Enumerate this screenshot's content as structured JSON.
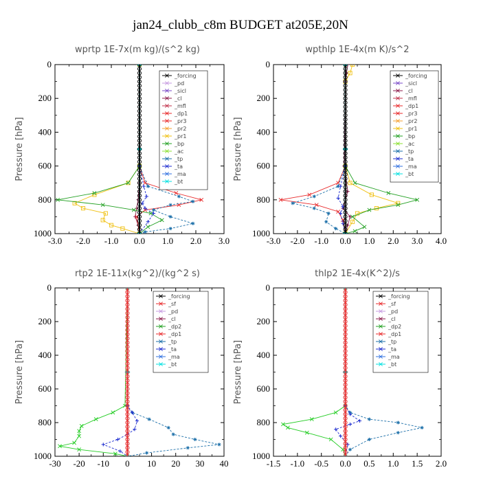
{
  "title": "jan24_clubb_c8m  BUDGET at205E,20N",
  "chart_data": [
    {
      "type": "line",
      "title": "wprtp   1E-7x(m kg)/(s^2 kg)",
      "ylabel": "Pressure [hPa]",
      "xlim": [
        -3.0,
        3.0
      ],
      "ylim": [
        1000,
        0
      ],
      "xticks": [
        "-3.0",
        "-2.0",
        "-1.0",
        "0.0",
        "1.0",
        "2.0",
        "3.0"
      ],
      "yticks": [
        "0",
        "200",
        "400",
        "600",
        "800",
        "1000"
      ],
      "legend": [
        "_forcing",
        "_pd",
        "_sicl",
        "_cl",
        "_mfl",
        "_dp1",
        "_pr3",
        "_pr2",
        "_pr1",
        "_bp",
        "_ac",
        "_tp",
        "_ta",
        "_ma",
        "_bt"
      ],
      "series": [
        {
          "name": "_forcing",
          "color": "#000000",
          "marker": "o",
          "x": [
            0,
            0,
            0,
            0,
            0,
            0,
            0,
            0,
            0,
            0,
            0
          ],
          "y": [
            0,
            100,
            200,
            300,
            400,
            500,
            600,
            700,
            800,
            900,
            1000
          ]
        },
        {
          "name": "_mfl",
          "color": "#8b1a4a",
          "marker": "+",
          "x": [
            0,
            0,
            0,
            -0.05,
            -0.1,
            -0.15,
            -0.05,
            0
          ],
          "y": [
            0,
            600,
            700,
            800,
            850,
            900,
            950,
            1000
          ]
        },
        {
          "name": "_dp1",
          "color": "#e8292a",
          "marker": "x",
          "x": [
            0,
            0,
            0.2,
            1.3,
            2.2,
            1.4,
            0.2,
            -0.1,
            0
          ],
          "y": [
            0,
            600,
            700,
            760,
            800,
            830,
            860,
            900,
            1000
          ]
        },
        {
          "name": "_pr1",
          "color": "#f0c010",
          "marker": "s",
          "x": [
            0,
            0,
            -0.4,
            -1.6,
            -2.3,
            -2.0,
            -1.2,
            -1.3,
            -1.0,
            -0.6,
            0
          ],
          "y": [
            0,
            600,
            700,
            770,
            820,
            850,
            880,
            920,
            950,
            970,
            1000
          ]
        },
        {
          "name": "_bp",
          "color": "#22a022",
          "marker": "x",
          "x": [
            0,
            0,
            -0.4,
            -1.6,
            -2.9,
            -1.3,
            -0.2,
            0.4,
            0.8,
            0.3,
            0
          ],
          "y": [
            0,
            600,
            700,
            760,
            800,
            830,
            860,
            880,
            920,
            960,
            1000
          ]
        },
        {
          "name": "_tp",
          "color": "#1a6ea8",
          "marker": "*",
          "x": [
            0,
            0,
            0.3,
            1.4,
            1.9,
            1.1,
            0.5,
            1.1,
            1.9,
            1.1,
            0.2,
            0
          ],
          "y": [
            0,
            600,
            720,
            780,
            810,
            830,
            860,
            900,
            940,
            970,
            990,
            1000
          ]
        },
        {
          "name": "_ta",
          "color": "#1f2ed0",
          "marker": "+",
          "x": [
            0,
            0,
            0.15,
            0.25,
            0.1,
            0.2,
            0.5,
            0.3,
            0
          ],
          "y": [
            0,
            600,
            720,
            780,
            820,
            850,
            880,
            930,
            1000
          ]
        },
        {
          "name": "_bt",
          "color": "#00e0e0",
          "marker": "d",
          "x": [
            0,
            0,
            0
          ],
          "y": [
            0,
            500,
            1000
          ]
        }
      ]
    },
    {
      "type": "line",
      "title": "wpthlp   1E-4x(m K)/s^2",
      "ylabel": "Pressure [hPa]",
      "xlim": [
        -3.0,
        4.0
      ],
      "ylim": [
        1000,
        0
      ],
      "xticks": [
        "-3.0",
        "-2.0",
        "-1.0",
        "0.0",
        "1.0",
        "2.0",
        "3.0",
        "4.0"
      ],
      "yticks": [
        "0",
        "200",
        "400",
        "600",
        "800",
        "1000"
      ],
      "legend": [
        "_forcing",
        "_sicl",
        "_cl",
        "_mfl",
        "_dp1",
        "_pr3",
        "_pr2",
        "_pr1",
        "_bp",
        "_ac",
        "_tp",
        "_ta",
        "_ma",
        "_bt"
      ],
      "series": [
        {
          "name": "_forcing",
          "color": "#000000",
          "marker": "o",
          "x": [
            0,
            0,
            0,
            0,
            0,
            0,
            0,
            0,
            0,
            0,
            0
          ],
          "y": [
            0,
            100,
            200,
            300,
            400,
            500,
            600,
            700,
            800,
            900,
            1000
          ]
        },
        {
          "name": "_mfl",
          "color": "#8b1a4a",
          "marker": "+",
          "x": [
            0.1,
            0.05,
            0,
            -0.05,
            0.1,
            -0.1,
            0.2,
            0.1,
            0
          ],
          "y": [
            0,
            50,
            100,
            600,
            750,
            850,
            900,
            950,
            1000
          ]
        },
        {
          "name": "_dp1",
          "color": "#e8292a",
          "marker": "x",
          "x": [
            0,
            0,
            -0.3,
            -1.5,
            -2.7,
            -1.2,
            -0.3,
            -0.1,
            0
          ],
          "y": [
            0,
            600,
            700,
            770,
            800,
            830,
            870,
            920,
            1000
          ]
        },
        {
          "name": "_pr1",
          "color": "#f0c010",
          "marker": "s",
          "x": [
            0.3,
            0.2,
            0,
            0,
            0.2,
            1.1,
            2.2,
            1.3,
            0.5,
            0.3,
            0
          ],
          "y": [
            0,
            50,
            100,
            600,
            700,
            770,
            820,
            850,
            880,
            930,
            1000
          ]
        },
        {
          "name": "_bp",
          "color": "#22a022",
          "marker": "x",
          "x": [
            0,
            0,
            0.4,
            1.8,
            3.0,
            2.2,
            1.0,
            0.3,
            0.8,
            0.4,
            0
          ],
          "y": [
            0,
            600,
            700,
            760,
            800,
            830,
            860,
            900,
            960,
            985,
            1000
          ]
        },
        {
          "name": "_tp",
          "color": "#1a6ea8",
          "marker": "*",
          "x": [
            0,
            0,
            -0.3,
            -1.3,
            -2.2,
            -1.3,
            -0.7,
            -0.8,
            -0.4,
            0
          ],
          "y": [
            0,
            600,
            720,
            780,
            820,
            850,
            880,
            930,
            970,
            1000
          ]
        },
        {
          "name": "_ta",
          "color": "#1f2ed0",
          "marker": "+",
          "x": [
            0,
            0,
            -0.2,
            -0.3,
            -0.1,
            -0.2,
            -0.1,
            0
          ],
          "y": [
            0,
            600,
            720,
            790,
            840,
            880,
            940,
            1000
          ]
        },
        {
          "name": "_bt",
          "color": "#00e0e0",
          "marker": "d",
          "x": [
            0,
            0,
            0
          ],
          "y": [
            0,
            500,
            1000
          ]
        }
      ]
    },
    {
      "type": "line",
      "title": "rtp2   1E-11x(kg^2)/(kg^2 s)",
      "ylabel": "Pressure [hPa]",
      "xlim": [
        -30,
        40
      ],
      "ylim": [
        1000,
        0
      ],
      "xticks": [
        "-30",
        "-20",
        "-10",
        "0",
        "10",
        "20",
        "30",
        "40"
      ],
      "yticks": [
        "0",
        "200",
        "400",
        "600",
        "800",
        "1000"
      ],
      "legend": [
        "_forcing",
        "_sf",
        "_pd",
        "_cl",
        "_dp2",
        "_dp1",
        "_tp",
        "_ta",
        "_ma",
        "_bt"
      ],
      "series": [
        {
          "name": "_forcing",
          "color": "#e8292a",
          "marker": "o",
          "x": [
            0,
            0,
            0,
            0,
            0,
            0,
            0,
            0,
            0,
            0,
            0
          ],
          "y": [
            0,
            100,
            200,
            300,
            400,
            500,
            600,
            700,
            800,
            900,
            1000
          ]
        },
        {
          "name": "_dp1",
          "color": "#22cc22",
          "marker": "x",
          "x": [
            0,
            -1,
            -6,
            -13,
            -19,
            -20,
            -20,
            -22,
            -28,
            -20,
            -5,
            0
          ],
          "y": [
            0,
            700,
            740,
            780,
            820,
            850,
            880,
            920,
            940,
            960,
            985,
            1000
          ]
        },
        {
          "name": "_tp",
          "color": "#1a6ea8",
          "marker": "*",
          "x": [
            0,
            0,
            2,
            9,
            17,
            19,
            28,
            38,
            25,
            8,
            0
          ],
          "y": [
            0,
            700,
            740,
            780,
            830,
            870,
            900,
            930,
            950,
            980,
            1000
          ]
        },
        {
          "name": "_ta",
          "color": "#1f2ed0",
          "marker": "+",
          "x": [
            0,
            0,
            2,
            4,
            3,
            0,
            -4,
            -10,
            -3,
            0
          ],
          "y": [
            0,
            700,
            740,
            790,
            840,
            870,
            900,
            930,
            970,
            1000
          ]
        },
        {
          "name": "_bt",
          "color": "#00e0e0",
          "marker": "d",
          "x": [
            0,
            0,
            0
          ],
          "y": [
            0,
            500,
            1000
          ]
        }
      ]
    },
    {
      "type": "line",
      "title": "thlp2   1E-4x(K^2)/s",
      "ylabel": "Pressure [hPa]",
      "xlim": [
        -1.5,
        2.0
      ],
      "ylim": [
        1000,
        0
      ],
      "xticks": [
        "-1.5",
        "-1.0",
        "-0.5",
        "0.0",
        "0.5",
        "1.0",
        "1.5",
        "2.0"
      ],
      "yticks": [
        "0",
        "200",
        "400",
        "600",
        "800",
        "1000"
      ],
      "legend": [
        "_forcing",
        "_sf",
        "_pd",
        "_cl",
        "_dp2",
        "_dp1",
        "_tp",
        "_ta",
        "_ma",
        "_bt"
      ],
      "series": [
        {
          "name": "_forcing",
          "color": "#e8292a",
          "marker": "o",
          "x": [
            0,
            0,
            0,
            0,
            0,
            0,
            0,
            0,
            0,
            0,
            0
          ],
          "y": [
            0,
            100,
            200,
            300,
            400,
            500,
            600,
            700,
            800,
            900,
            1000
          ]
        },
        {
          "name": "_dp1",
          "color": "#22cc22",
          "marker": "x",
          "x": [
            0,
            0,
            -0.2,
            -0.7,
            -1.3,
            -1.2,
            -0.8,
            -0.3,
            -0.05,
            0
          ],
          "y": [
            0,
            700,
            740,
            780,
            810,
            830,
            860,
            900,
            960,
            1000
          ]
        },
        {
          "name": "_tp",
          "color": "#1a6ea8",
          "marker": "*",
          "x": [
            0,
            0,
            0.1,
            0.5,
            1.1,
            1.6,
            1.1,
            0.5,
            0.1,
            0
          ],
          "y": [
            0,
            700,
            740,
            780,
            800,
            830,
            860,
            900,
            960,
            1000
          ]
        },
        {
          "name": "_ta",
          "color": "#1f2ed0",
          "marker": "+",
          "x": [
            0,
            0,
            0.1,
            0.3,
            0.1,
            -0.2,
            -0.1,
            0.05,
            0
          ],
          "y": [
            0,
            700,
            750,
            790,
            810,
            840,
            880,
            930,
            1000
          ]
        },
        {
          "name": "_bt",
          "color": "#00e0e0",
          "marker": "d",
          "x": [
            0,
            0,
            0
          ],
          "y": [
            0,
            500,
            1000
          ]
        }
      ]
    }
  ],
  "legend_colors": {
    "_forcing": "#000000",
    "_pd": "#c69ae0",
    "_sicl": "#7a4ac8",
    "_cl": "#8b1a4a",
    "_mfl": "#c0304a",
    "_dp1": "#e8292a",
    "_pr3": "#e8292a",
    "_pr2": "#f5a030",
    "_pr1": "#f0c010",
    "_bp": "#22a022",
    "_ac": "#8be030",
    "_tp": "#1a6ea8",
    "_ta": "#1f2ed0",
    "_ma": "#3070e0",
    "_bt": "#00e0e0",
    "_sf": "#e8292a",
    "_dp2": "#22a022"
  }
}
